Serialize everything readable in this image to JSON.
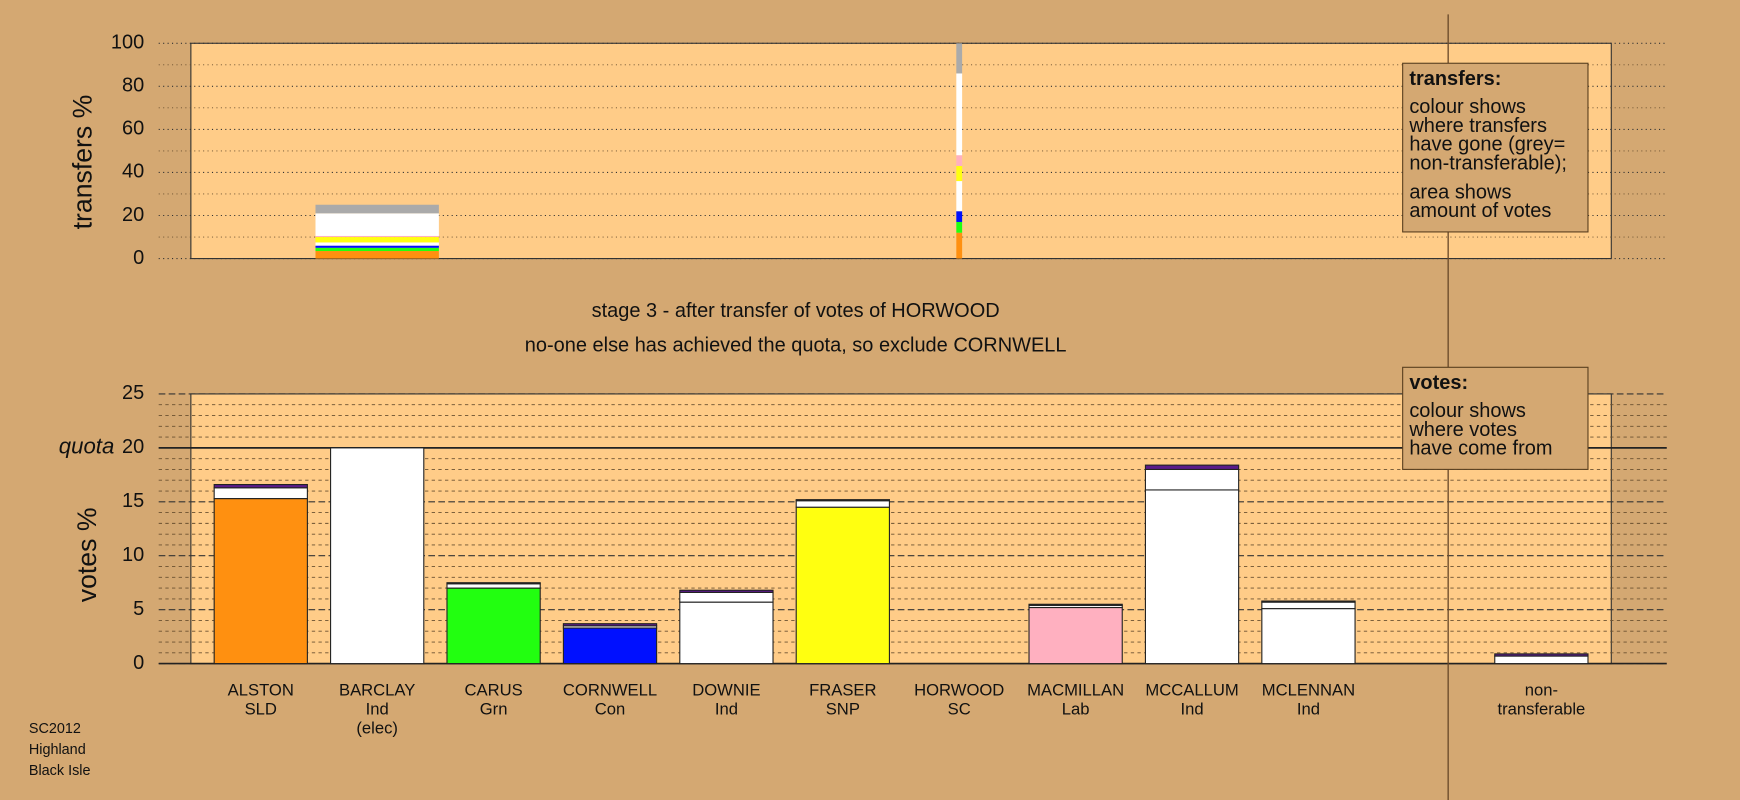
{
  "chart_data": [
    {
      "type": "bar",
      "stacked": true,
      "y_label": "transfers %",
      "ylim": [
        0,
        100
      ],
      "yticks": [
        0,
        20,
        40,
        60,
        80,
        100
      ],
      "minor_yticks": [
        10,
        30,
        50,
        70,
        90
      ],
      "grid": true,
      "bar_widths": [
        null,
        1.06,
        null,
        null,
        null,
        null,
        0.05,
        null,
        null,
        null,
        null
      ],
      "series": [
        {
          "color": "#ff9010",
          "values": [
            null,
            3.5,
            null,
            null,
            null,
            null,
            12,
            null,
            null,
            null,
            null
          ]
        },
        {
          "color": "#22ff10",
          "values": [
            null,
            1.5,
            null,
            null,
            null,
            null,
            5,
            null,
            null,
            null,
            null
          ]
        },
        {
          "color": "#0010ff",
          "values": [
            null,
            1,
            null,
            null,
            null,
            null,
            5,
            null,
            null,
            null,
            null
          ]
        },
        {
          "color": "#ffffff",
          "values": [
            null,
            1.5,
            null,
            null,
            null,
            null,
            14,
            null,
            null,
            null,
            null
          ]
        },
        {
          "color": "#ffff10",
          "values": [
            null,
            2.5,
            null,
            null,
            null,
            null,
            7,
            null,
            null,
            null,
            null
          ]
        },
        {
          "color": "#ffb0c0",
          "values": [
            null,
            0.5,
            null,
            null,
            null,
            null,
            5,
            null,
            null,
            null,
            null
          ]
        },
        {
          "color": "#ffffff",
          "values": [
            null,
            10.5,
            null,
            null,
            null,
            null,
            38,
            null,
            null,
            null,
            null
          ]
        },
        {
          "color": "#aaaaaa",
          "values": [
            null,
            4,
            null,
            null,
            null,
            null,
            14,
            null,
            null,
            null,
            null
          ]
        }
      ],
      "legend": [
        "transfers:",
        "colour shows",
        "where transfers",
        "have gone (grey=",
        "non-transferable);",
        "area shows",
        "amount of votes"
      ]
    },
    {
      "type": "bar",
      "stacked": true,
      "y_label": "votes %",
      "ylim": [
        0,
        25
      ],
      "yticks": [
        0,
        5,
        10,
        15,
        20,
        25
      ],
      "minor_yticks": [
        1,
        2,
        3,
        4,
        6,
        7,
        8,
        9,
        11,
        12,
        13,
        14,
        16,
        17,
        18,
        19,
        21,
        22,
        23,
        24
      ],
      "grid": true,
      "quota": 20,
      "quota_label": "quota",
      "categories": [
        [
          "ALSTON",
          "SLD"
        ],
        [
          "BARCLAY",
          "Ind",
          "(elec)"
        ],
        [
          "CARUS",
          "Grn"
        ],
        [
          "CORNWELL",
          "Con"
        ],
        [
          "DOWNIE",
          "Ind"
        ],
        [
          "FRASER",
          "SNP"
        ],
        [
          "HORWOOD",
          "SC"
        ],
        [
          "MACMILLAN",
          "Lab"
        ],
        [
          "MCCALLUM",
          "Ind"
        ],
        [
          "MCLENNAN",
          "Ind"
        ],
        [
          "non-",
          "transferable"
        ]
      ],
      "series": [
        {
          "colors": [
            "#ff9010",
            "#ffffff",
            "#22ff10",
            "#0010ff",
            "#ffffff",
            "#ffff10",
            "#888888",
            "#ffb0c0",
            "#ffffff",
            "#ffffff",
            "#ffffff"
          ],
          "values": [
            15.3,
            20,
            7.0,
            3.3,
            5.7,
            14.5,
            0,
            5.2,
            16.1,
            5.1,
            0
          ]
        },
        {
          "color": "#ffffff",
          "values": [
            1.0,
            0,
            0.4,
            0.2,
            0.9,
            0.6,
            0,
            0.2,
            1.9,
            0.6,
            0.7
          ]
        },
        {
          "color": "#5a1a8a",
          "values": [
            0.3,
            0,
            0.1,
            0.2,
            0.2,
            0.1,
            0,
            0.1,
            0.4,
            0.1,
            0.2
          ]
        }
      ],
      "legend": [
        "votes:",
        "colour shows",
        "where votes",
        "have come from"
      ]
    }
  ],
  "stage": {
    "title": "stage 3 - after transfer of votes of HORWOOD",
    "subtitle": "no-one else has achieved the quota, so exclude CORNWELL"
  },
  "footer": [
    "SC2012",
    "Highland",
    "Black Isle"
  ]
}
